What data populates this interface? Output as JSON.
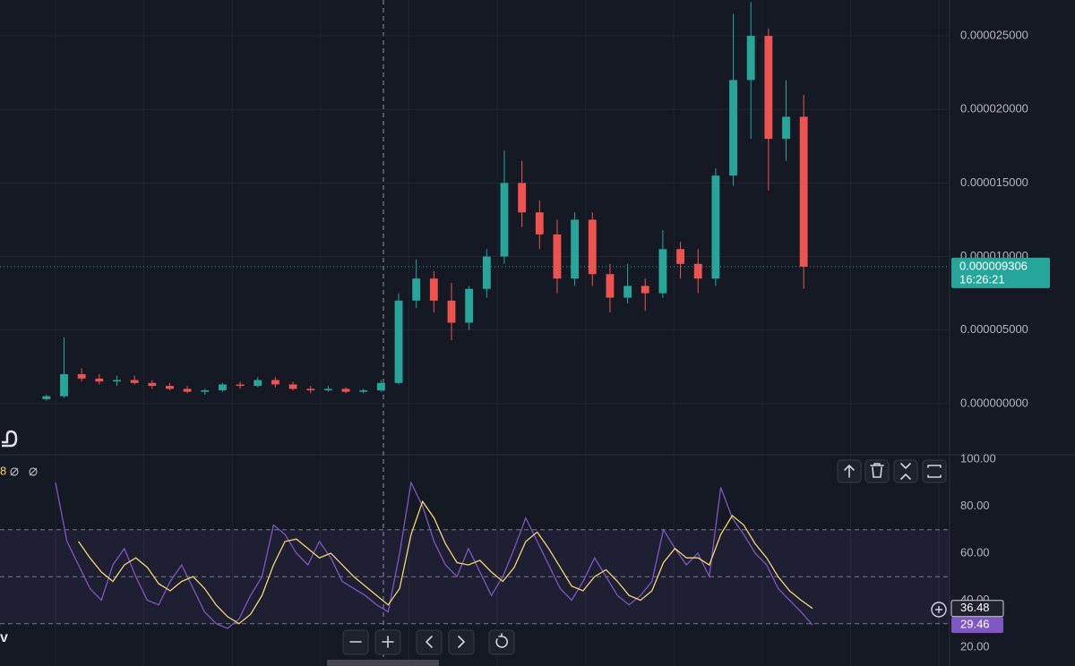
{
  "chart_data": [
    {
      "type": "candlestick",
      "up_color": "#26a69a",
      "down_color": "#ef5350",
      "open": [
        3e-07,
        5e-07,
        2e-06,
        1.7e-06,
        1.5e-06,
        1.6e-06,
        1.4e-06,
        1.2e-06,
        1e-06,
        8e-07,
        9e-07,
        1.3e-06,
        1.2e-06,
        1.6e-06,
        1.3e-06,
        1e-06,
        9e-07,
        1e-06,
        8e-07,
        9e-07,
        1.4e-06,
        7e-06,
        8.5e-06,
        7e-06,
        5.5e-06,
        7.8e-06,
        1e-05,
        1.5e-05,
        1.3e-05,
        1.15e-05,
        8.5e-06,
        1.25e-05,
        8.8e-06,
        7.2e-06,
        8e-06,
        7.5e-06,
        1.05e-05,
        9.5e-06,
        8.5e-06,
        1.55e-05,
        2.2e-05,
        2.5e-05,
        1.8e-05,
        1.95e-05
      ],
      "high": [
        6e-07,
        4.5e-06,
        2.4e-06,
        2e-06,
        1.9e-06,
        1.9e-06,
        1.6e-06,
        1.4e-06,
        1.2e-06,
        1e-06,
        1.4e-06,
        1.5e-06,
        1.8e-06,
        1.8e-06,
        1.5e-06,
        1.2e-06,
        1.2e-06,
        1.1e-06,
        1e-06,
        1.6e-06,
        7.5e-06,
        9.8e-06,
        9e-06,
        8.2e-06,
        8e-06,
        1.05e-05,
        1.72e-05,
        1.65e-05,
        1.38e-05,
        1.25e-05,
        1.3e-05,
        1.3e-05,
        9.5e-06,
        9.5e-06,
        8.5e-06,
        1.18e-05,
        1.1e-05,
        1.05e-05,
        1.6e-05,
        2.65e-05,
        2.73e-05,
        2.55e-05,
        2.2e-05,
        2.1e-05
      ],
      "low": [
        2e-07,
        4e-07,
        1.5e-06,
        1.3e-06,
        1.2e-06,
        1.3e-06,
        1e-06,
        9e-07,
        7e-07,
        6e-07,
        8e-07,
        1e-06,
        1.1e-06,
        1.1e-06,
        9e-07,
        7e-07,
        8e-07,
        7e-07,
        7e-07,
        8e-07,
        1.3e-06,
        6.5e-06,
        6.2e-06,
        4.3e-06,
        5e-06,
        7.2e-06,
        9.5e-06,
        1.2e-05,
        1.05e-05,
        7.5e-06,
        8e-06,
        8e-06,
        6.2e-06,
        6.8e-06,
        6.3e-06,
        7.2e-06,
        8.5e-06,
        7.5e-06,
        8e-06,
        1.48e-05,
        1.8e-05,
        1.45e-05,
        1.65e-05,
        7.8e-06
      ],
      "close": [
        5e-07,
        2e-06,
        1.7e-06,
        1.5e-06,
        1.6e-06,
        1.4e-06,
        1.2e-06,
        1e-06,
        8e-07,
        9e-07,
        1.3e-06,
        1.2e-06,
        1.6e-06,
        1.3e-06,
        1e-06,
        9e-07,
        1e-06,
        8e-07,
        9e-07,
        1.4e-06,
        7e-06,
        8.5e-06,
        7e-06,
        5.5e-06,
        7.8e-06,
        1e-05,
        1.5e-05,
        1.3e-05,
        1.15e-05,
        8.5e-06,
        1.25e-05,
        8.8e-06,
        7.2e-06,
        8e-06,
        7.5e-06,
        1.05e-05,
        9.5e-06,
        8.5e-06,
        1.55e-05,
        2.2e-05,
        2.5e-05,
        1.8e-05,
        1.95e-05,
        9.306e-06
      ],
      "ylim": [
        -3.48e-06,
        2.744e-05
      ],
      "yticks": [
        {
          "value": 0,
          "label": "0.000000000"
        },
        {
          "value": 5e-06,
          "label": "0.000005000"
        },
        {
          "value": 1e-05,
          "label": "0.000010000"
        },
        {
          "value": 1.5e-05,
          "label": "0.000015000"
        },
        {
          "value": 2e-05,
          "label": "0.000020000"
        },
        {
          "value": 2.5e-05,
          "label": "0.000025000"
        }
      ],
      "current_price": {
        "value": 9.306e-06,
        "label": "0.000009306"
      },
      "countdown": "16:26:21",
      "grid": true
    },
    {
      "type": "line",
      "legend_text": "8",
      "series": [
        {
          "color": "#7e57c2",
          "values": [
            90,
            65,
            55,
            45,
            40,
            55,
            62,
            50,
            40,
            38,
            48,
            55,
            45,
            35,
            30,
            28,
            32,
            42,
            50,
            72,
            68,
            60,
            55,
            65,
            58,
            48,
            45,
            42,
            38,
            35,
            60,
            90,
            80,
            65,
            55,
            50,
            62,
            52,
            42,
            50,
            62,
            75,
            65,
            55,
            45,
            40,
            48,
            58,
            50,
            42,
            38,
            42,
            48,
            70,
            62,
            55,
            60,
            50,
            88,
            75,
            68,
            60,
            55,
            45,
            40,
            35,
            29.46
          ]
        },
        {
          "color": "#f5d76e",
          "values": [
            null,
            null,
            65,
            58,
            52,
            48,
            55,
            58,
            54,
            47,
            44,
            48,
            50,
            45,
            38,
            33,
            30,
            34,
            42,
            55,
            65,
            66,
            62,
            58,
            60,
            55,
            50,
            46,
            42,
            38,
            45,
            68,
            82,
            75,
            64,
            56,
            55,
            57,
            52,
            48,
            54,
            65,
            69,
            62,
            54,
            46,
            44,
            50,
            53,
            48,
            42,
            40,
            44,
            56,
            62,
            58,
            58,
            55,
            68,
            76,
            72,
            64,
            58,
            50,
            44,
            40,
            36.48
          ]
        }
      ],
      "ylim": [
        12,
        101.9
      ],
      "yticks": [
        {
          "value": 20,
          "label": "20.00"
        },
        {
          "value": 40,
          "label": "40.00"
        },
        {
          "value": 60,
          "label": "60.00"
        },
        {
          "value": 80,
          "label": "80.00"
        },
        {
          "value": 100,
          "label": "100.00"
        }
      ],
      "overbought": 70,
      "midline": 50,
      "oversold": 30,
      "band_color": "#7e57c2"
    }
  ]
}
